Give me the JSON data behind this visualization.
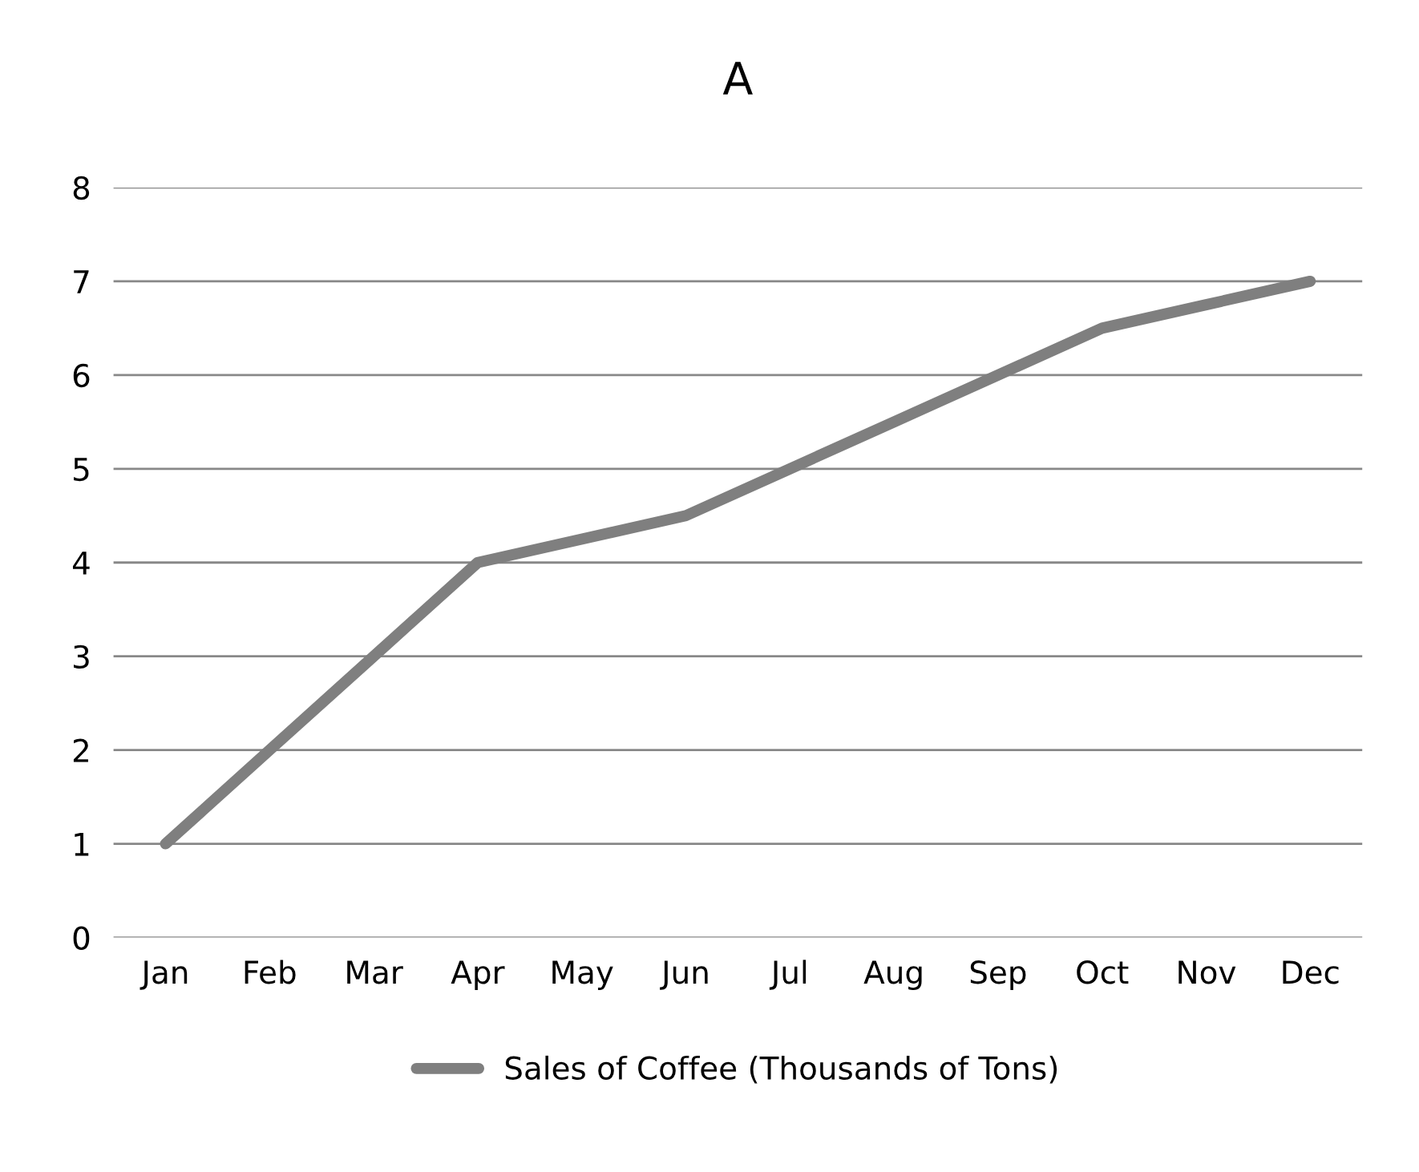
{
  "chart_data": {
    "type": "line",
    "title": "A",
    "categories": [
      "Jan",
      "Feb",
      "Mar",
      "Apr",
      "May",
      "Jun",
      "Jul",
      "Aug",
      "Sep",
      "Oct",
      "Nov",
      "Dec"
    ],
    "series": [
      {
        "name": "Sales of Coffee (Thousands of Tons)",
        "color": "#7f7f7f",
        "values": [
          1,
          2,
          3,
          4,
          4.25,
          4.5,
          5,
          5.5,
          6,
          6.5,
          6.75,
          7
        ]
      }
    ],
    "ylim": [
      0,
      8
    ],
    "yticks": [
      0,
      1,
      2,
      3,
      4,
      5,
      6,
      7,
      8
    ],
    "grid": "y",
    "legend": "bottom",
    "marker": "none",
    "line_style": "solid"
  }
}
